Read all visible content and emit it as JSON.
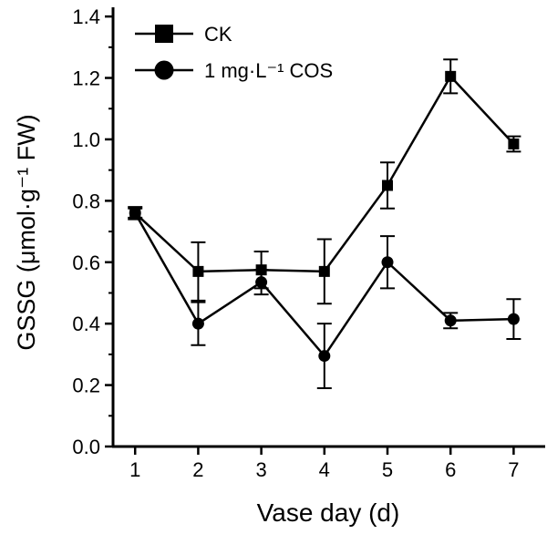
{
  "chart_data": {
    "type": "line",
    "title": "",
    "xlabel": "Vase day (d)",
    "ylabel": "GSSG (μmol·g⁻¹ FW)",
    "x": [
      1,
      2,
      3,
      4,
      5,
      6,
      7
    ],
    "xticks": [
      "1",
      "2",
      "3",
      "4",
      "5",
      "6",
      "7"
    ],
    "yticks": [
      "0.0",
      "0.2",
      "0.4",
      "0.6",
      "0.8",
      "1.0",
      "1.2",
      "1.4"
    ],
    "xlim": [
      0.65,
      7.5
    ],
    "ylim": [
      0,
      1.43
    ],
    "grid": false,
    "legend_position": "top-left",
    "series": [
      {
        "name": "CK",
        "marker": "square",
        "values": [
          0.76,
          0.57,
          0.575,
          0.57,
          0.85,
          1.205,
          0.985
        ],
        "errors": [
          0.02,
          0.095,
          0.06,
          0.105,
          0.075,
          0.055,
          0.025
        ]
      },
      {
        "name": "1 mg·L⁻¹ COS",
        "marker": "circle",
        "values": [
          0.76,
          0.4,
          0.535,
          0.295,
          0.6,
          0.41,
          0.415
        ],
        "errors": [
          0.015,
          0.07,
          0.04,
          0.105,
          0.085,
          0.025,
          0.065
        ]
      }
    ]
  }
}
